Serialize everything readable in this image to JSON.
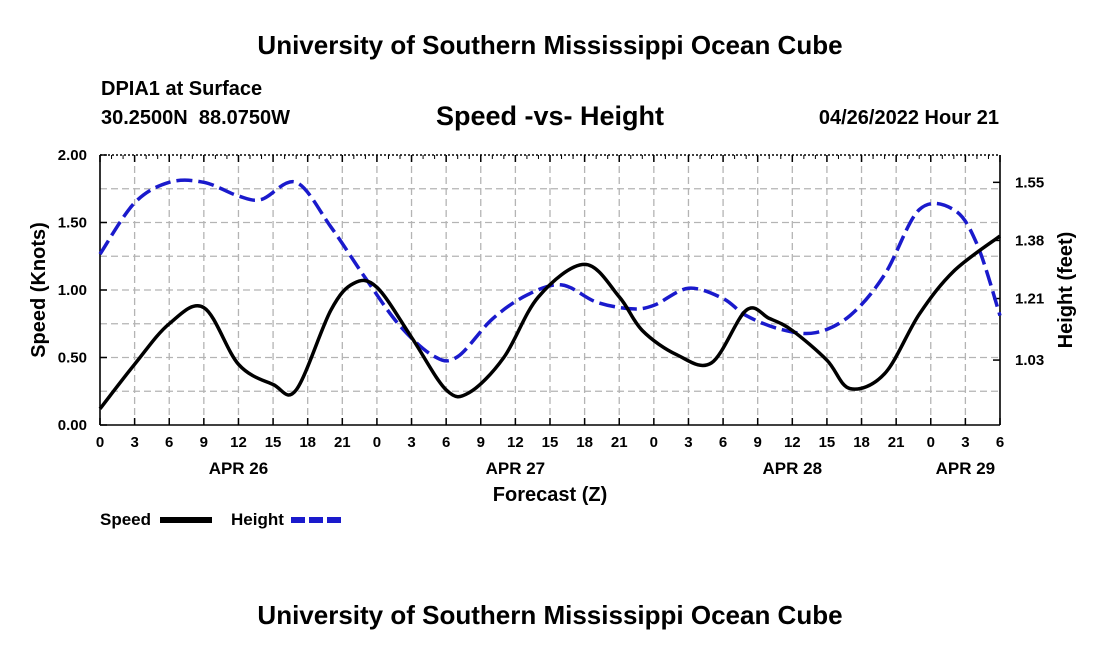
{
  "header": {
    "title": "University of Southern Mississippi Ocean Cube",
    "station": "DPIA1 at Surface",
    "coords": "30.2500N  88.0750W",
    "subtitle": "Speed -vs- Height",
    "datetime": "04/26/2022 Hour 21"
  },
  "footer": {
    "title": "University of Southern Mississippi Ocean Cube"
  },
  "chart_data": {
    "type": "line",
    "title": "Speed -vs- Height",
    "xlabel": "Forecast (Z)",
    "ylabel": "Speed (Knots)",
    "y2label": "Height (feet)",
    "grid": true,
    "xlim": [
      0,
      78
    ],
    "ylim": [
      0,
      2.0
    ],
    "y2lim": [
      0.84,
      1.63
    ],
    "x_tick_values": [
      0,
      3,
      6,
      9,
      12,
      15,
      18,
      21,
      24,
      27,
      30,
      33,
      36,
      39,
      42,
      45,
      48,
      51,
      54,
      57,
      60,
      63,
      66,
      69,
      72,
      75,
      78
    ],
    "x_tick_labels": [
      "0",
      "3",
      "6",
      "9",
      "12",
      "15",
      "18",
      "21",
      "0",
      "3",
      "6",
      "9",
      "12",
      "15",
      "18",
      "21",
      "0",
      "3",
      "6",
      "9",
      "12",
      "15",
      "18",
      "21",
      "0",
      "3",
      "6"
    ],
    "date_labels": [
      {
        "label": "APR 26",
        "x": 12
      },
      {
        "label": "APR 27",
        "x": 36
      },
      {
        "label": "APR 28",
        "x": 60
      },
      {
        "label": "APR 29",
        "x": 75
      }
    ],
    "y_tick_values": [
      0,
      0.5,
      1.0,
      1.5,
      2.0
    ],
    "y_tick_labels": [
      "0.00",
      "0.50",
      "1.00",
      "1.50",
      "2.00"
    ],
    "y2_tick_values": [
      1.03,
      1.21,
      1.38,
      1.55
    ],
    "y2_tick_labels": [
      "1.03",
      "1.21",
      "1.38",
      "1.55"
    ],
    "legend": [
      {
        "name": "Speed",
        "color": "#000000",
        "style": "solid"
      },
      {
        "name": "Height",
        "color": "#1a1acc",
        "style": "dashed"
      }
    ],
    "series": [
      {
        "name": "Speed",
        "axis": "left",
        "color": "#000000",
        "style": "solid",
        "x": [
          0,
          3,
          6,
          9,
          12,
          15,
          17,
          20,
          22,
          24,
          27,
          30,
          32,
          35,
          38,
          42,
          45,
          47,
          50,
          53,
          56,
          58,
          60,
          63,
          65,
          68,
          71,
          74,
          78
        ],
        "y": [
          0.12,
          0.45,
          0.75,
          0.87,
          0.45,
          0.3,
          0.26,
          0.85,
          1.05,
          1.02,
          0.65,
          0.26,
          0.24,
          0.5,
          0.95,
          1.19,
          0.95,
          0.7,
          0.52,
          0.46,
          0.85,
          0.79,
          0.7,
          0.48,
          0.27,
          0.38,
          0.82,
          1.14,
          1.4
        ]
      },
      {
        "name": "Height",
        "axis": "right",
        "color": "#1a1acc",
        "style": "dashed",
        "x": [
          0,
          3,
          6,
          9,
          12,
          14,
          17,
          20,
          23,
          26,
          29,
          31,
          34,
          37,
          40,
          43,
          46,
          48,
          51,
          54,
          56,
          59,
          62,
          65,
          68,
          71,
          74,
          76,
          78
        ],
        "y": [
          1.34,
          1.49,
          1.55,
          1.55,
          1.51,
          1.5,
          1.55,
          1.42,
          1.27,
          1.13,
          1.04,
          1.04,
          1.15,
          1.22,
          1.25,
          1.2,
          1.18,
          1.19,
          1.24,
          1.21,
          1.16,
          1.12,
          1.11,
          1.16,
          1.28,
          1.47,
          1.47,
          1.37,
          1.16
        ]
      }
    ]
  }
}
